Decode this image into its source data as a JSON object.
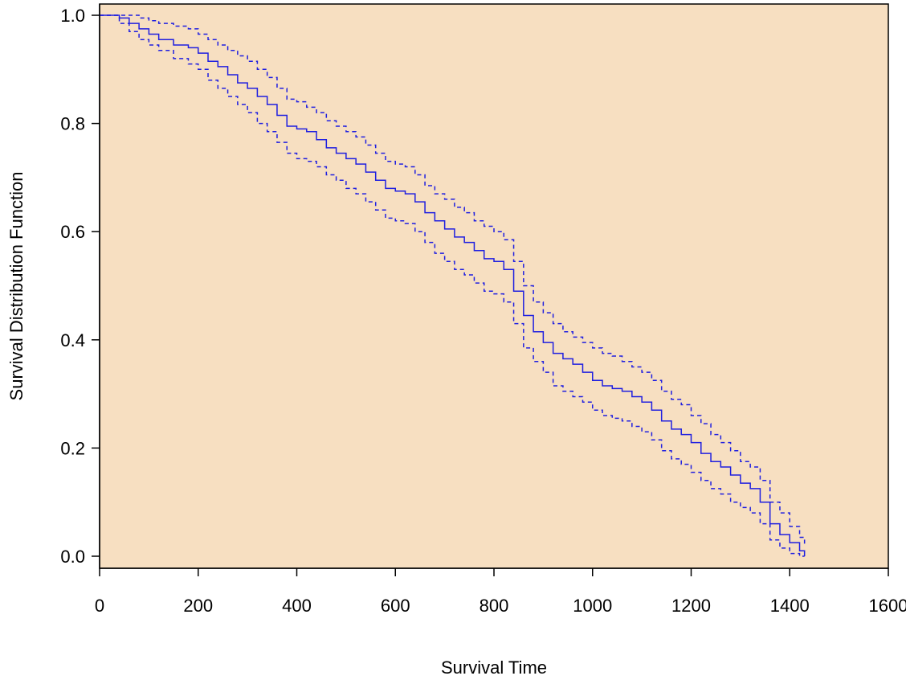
{
  "chart_data": {
    "type": "line",
    "title": "",
    "xlabel": "Survival Time",
    "ylabel": "Survival Distribution Function",
    "xlim": [
      0,
      1600
    ],
    "ylim": [
      0,
      1.0
    ],
    "x_ticks": [
      0,
      200,
      400,
      600,
      800,
      1000,
      1200,
      1400,
      1600
    ],
    "x_tick_labels": [
      "0",
      "200",
      "400",
      "600",
      "800",
      "1000",
      "1200",
      "1400",
      "1600"
    ],
    "y_ticks": [
      0,
      0.2,
      0.4,
      0.6,
      0.8,
      1.0
    ],
    "y_tick_labels": [
      "0.0",
      "0.2",
      "0.4",
      "0.6",
      "0.8",
      "1.0"
    ],
    "grid": false,
    "legend": "none",
    "colors": {
      "plot_background": "#f7dfc1",
      "series": "#1f1fe0",
      "axis": "#000000"
    },
    "series": [
      {
        "style": "solid",
        "x": [
          0,
          40,
          60,
          80,
          100,
          120,
          150,
          180,
          200,
          220,
          240,
          260,
          280,
          300,
          320,
          340,
          360,
          380,
          400,
          420,
          440,
          460,
          480,
          500,
          520,
          540,
          560,
          580,
          600,
          620,
          640,
          660,
          680,
          700,
          720,
          740,
          760,
          780,
          800,
          820,
          840,
          860,
          880,
          900,
          920,
          940,
          960,
          980,
          1000,
          1020,
          1040,
          1060,
          1080,
          1100,
          1120,
          1140,
          1160,
          1180,
          1200,
          1220,
          1240,
          1260,
          1280,
          1300,
          1320,
          1340,
          1360,
          1380,
          1400,
          1420,
          1430
        ],
        "y": [
          1.0,
          0.995,
          0.985,
          0.975,
          0.965,
          0.955,
          0.945,
          0.94,
          0.93,
          0.915,
          0.905,
          0.89,
          0.875,
          0.865,
          0.85,
          0.835,
          0.815,
          0.795,
          0.79,
          0.785,
          0.77,
          0.755,
          0.745,
          0.735,
          0.725,
          0.71,
          0.695,
          0.68,
          0.675,
          0.67,
          0.655,
          0.635,
          0.62,
          0.605,
          0.59,
          0.58,
          0.565,
          0.55,
          0.545,
          0.53,
          0.49,
          0.445,
          0.415,
          0.395,
          0.375,
          0.365,
          0.355,
          0.34,
          0.325,
          0.315,
          0.31,
          0.305,
          0.295,
          0.285,
          0.27,
          0.25,
          0.235,
          0.225,
          0.21,
          0.19,
          0.175,
          0.165,
          0.15,
          0.135,
          0.125,
          0.1,
          0.06,
          0.04,
          0.025,
          0.01,
          0.0
        ]
      },
      {
        "style": "dashed",
        "x": [
          0,
          40,
          60,
          80,
          100,
          120,
          150,
          180,
          200,
          220,
          240,
          260,
          280,
          300,
          320,
          340,
          360,
          380,
          400,
          420,
          440,
          460,
          480,
          500,
          520,
          540,
          560,
          580,
          600,
          620,
          640,
          660,
          680,
          700,
          720,
          740,
          760,
          780,
          800,
          820,
          840,
          860,
          880,
          900,
          920,
          940,
          960,
          980,
          1000,
          1020,
          1040,
          1060,
          1080,
          1100,
          1120,
          1140,
          1160,
          1180,
          1200,
          1220,
          1240,
          1260,
          1280,
          1300,
          1320,
          1340,
          1360,
          1380,
          1400,
          1420,
          1430
        ],
        "y": [
          1.0,
          1.0,
          1.0,
          0.995,
          0.99,
          0.985,
          0.98,
          0.975,
          0.965,
          0.955,
          0.945,
          0.935,
          0.925,
          0.915,
          0.9,
          0.885,
          0.865,
          0.845,
          0.84,
          0.83,
          0.82,
          0.805,
          0.795,
          0.785,
          0.775,
          0.76,
          0.745,
          0.73,
          0.725,
          0.72,
          0.705,
          0.685,
          0.67,
          0.66,
          0.645,
          0.635,
          0.62,
          0.61,
          0.6,
          0.585,
          0.545,
          0.5,
          0.47,
          0.45,
          0.43,
          0.415,
          0.405,
          0.395,
          0.385,
          0.375,
          0.37,
          0.36,
          0.35,
          0.34,
          0.325,
          0.305,
          0.29,
          0.28,
          0.26,
          0.245,
          0.225,
          0.21,
          0.195,
          0.175,
          0.165,
          0.14,
          0.1,
          0.08,
          0.055,
          0.035,
          0.02
        ]
      },
      {
        "style": "dashed",
        "x": [
          0,
          40,
          60,
          80,
          100,
          120,
          150,
          180,
          200,
          220,
          240,
          260,
          280,
          300,
          320,
          340,
          360,
          380,
          400,
          420,
          440,
          460,
          480,
          500,
          520,
          540,
          560,
          580,
          600,
          620,
          640,
          660,
          680,
          700,
          720,
          740,
          760,
          780,
          800,
          820,
          840,
          860,
          880,
          900,
          920,
          940,
          960,
          980,
          1000,
          1020,
          1040,
          1060,
          1080,
          1100,
          1120,
          1140,
          1160,
          1180,
          1200,
          1220,
          1240,
          1260,
          1280,
          1300,
          1320,
          1340,
          1360,
          1380,
          1400,
          1420,
          1430
        ],
        "y": [
          1.0,
          0.985,
          0.97,
          0.955,
          0.945,
          0.935,
          0.92,
          0.91,
          0.9,
          0.88,
          0.865,
          0.85,
          0.835,
          0.82,
          0.8,
          0.785,
          0.765,
          0.745,
          0.735,
          0.73,
          0.72,
          0.705,
          0.695,
          0.68,
          0.67,
          0.655,
          0.64,
          0.625,
          0.62,
          0.615,
          0.6,
          0.58,
          0.56,
          0.545,
          0.53,
          0.52,
          0.505,
          0.49,
          0.485,
          0.47,
          0.43,
          0.385,
          0.36,
          0.34,
          0.315,
          0.305,
          0.295,
          0.285,
          0.27,
          0.26,
          0.255,
          0.25,
          0.24,
          0.23,
          0.215,
          0.195,
          0.18,
          0.17,
          0.155,
          0.14,
          0.125,
          0.115,
          0.1,
          0.09,
          0.08,
          0.06,
          0.03,
          0.015,
          0.005,
          0.0,
          0.0
        ]
      }
    ]
  }
}
